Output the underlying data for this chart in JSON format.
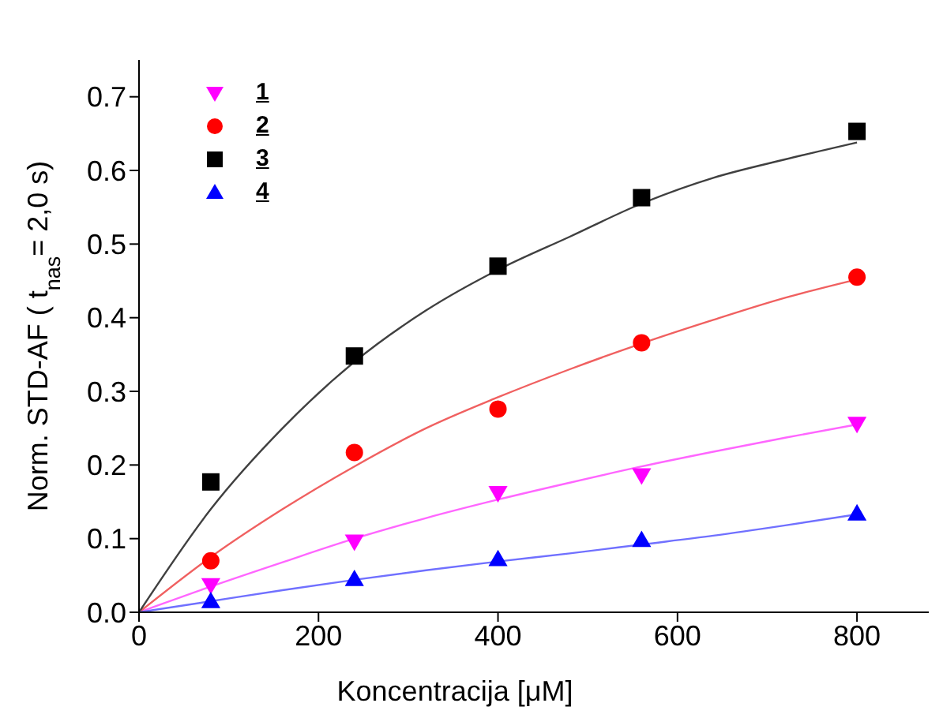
{
  "chart_data": {
    "type": "scatter",
    "xlabel": "Koncentracija [μM]",
    "ylabel": "Norm. STD-AF ( t$_{nas}$= 2,0 s)",
    "xlim": [
      0,
      880
    ],
    "xticks": [
      0,
      200,
      400,
      600,
      800
    ],
    "ylim": [
      0,
      0.75
    ],
    "yticks": [
      {
        "value": 0,
        "label": "0.0"
      },
      0.1,
      0.2,
      0.3,
      0.4,
      0.5,
      0.6,
      0.7
    ],
    "grid": false,
    "legend": "top left",
    "series": [
      {
        "name": "1",
        "type": "scatter",
        "marker": "triangle-down",
        "color": "#ff00ff",
        "x": [
          80,
          240,
          400,
          560,
          800
        ],
        "values": [
          0.037,
          0.096,
          0.162,
          0.186,
          0.256
        ]
      },
      {
        "name": "2",
        "type": "scatter",
        "marker": "circle",
        "color": "#ff0000",
        "x": [
          80,
          240,
          400,
          560,
          800
        ],
        "values": [
          0.07,
          0.217,
          0.276,
          0.366,
          0.455
        ]
      },
      {
        "name": "3",
        "type": "scatter",
        "marker": "square",
        "color": "#000000",
        "x": [
          80,
          240,
          400,
          560,
          800
        ],
        "values": [
          0.177,
          0.348,
          0.47,
          0.563,
          0.653
        ]
      },
      {
        "name": "4",
        "type": "scatter",
        "marker": "triangle",
        "color": "#0000ff",
        "x": [
          80,
          240,
          400,
          560,
          800
        ],
        "values": [
          0.015,
          0.045,
          0.072,
          0.098,
          0.134
        ]
      },
      {
        "type": "line",
        "color": "#ff66ff",
        "x": [
          0,
          80,
          160,
          240,
          320,
          400,
          480,
          560,
          640,
          720,
          800
        ],
        "values": [
          0,
          0.035,
          0.068,
          0.1,
          0.128,
          0.153,
          0.176,
          0.198,
          0.218,
          0.237,
          0.255
        ]
      },
      {
        "type": "line",
        "color": "#f06060",
        "x": [
          0,
          80,
          160,
          240,
          320,
          400,
          480,
          560,
          640,
          720,
          800
        ],
        "values": [
          0,
          0.075,
          0.14,
          0.198,
          0.25,
          0.292,
          0.33,
          0.365,
          0.397,
          0.427,
          0.452
        ]
      },
      {
        "type": "line",
        "color": "#404040",
        "x": [
          0,
          80,
          160,
          240,
          320,
          400,
          480,
          560,
          640,
          720,
          800
        ],
        "values": [
          0,
          0.14,
          0.25,
          0.34,
          0.41,
          0.465,
          0.51,
          0.555,
          0.59,
          0.615,
          0.638
        ]
      },
      {
        "type": "line",
        "color": "#7070ff",
        "x": [
          0,
          80,
          160,
          240,
          320,
          400,
          480,
          560,
          640,
          720,
          800
        ],
        "values": [
          0,
          0.015,
          0.03,
          0.044,
          0.057,
          0.069,
          0.08,
          0.092,
          0.104,
          0.118,
          0.133
        ]
      }
    ]
  }
}
